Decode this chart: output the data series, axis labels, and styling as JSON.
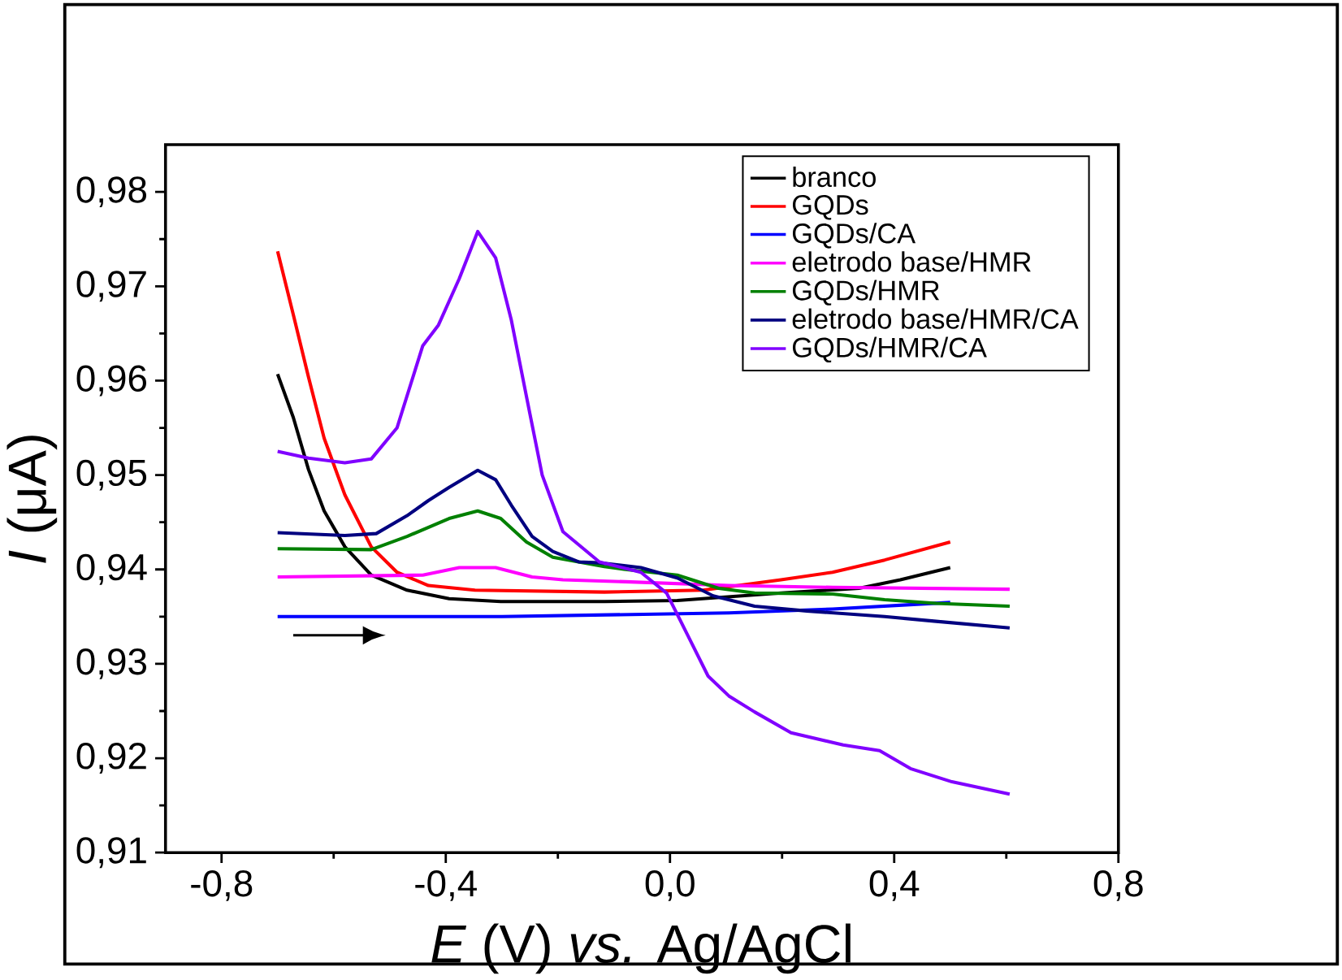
{
  "chart_data": {
    "type": "line",
    "xlabel": "*E* (V) *vs.* Ag/AgCl",
    "ylabel": "*I* (μA)",
    "xlim": [
      -0.9,
      0.8
    ],
    "ylim": [
      0.91,
      0.985
    ],
    "xticks": [
      {
        "value": -0.8,
        "label": "-0,8"
      },
      {
        "value": -0.4,
        "label": "-0,4"
      },
      {
        "value": 0.0,
        "label": "0,0"
      },
      {
        "value": 0.4,
        "label": "0,4"
      },
      {
        "value": 0.8,
        "label": "0,8"
      }
    ],
    "yticks": [
      {
        "value": 0.91,
        "label": "0,91"
      },
      {
        "value": 0.92,
        "label": "0,92"
      },
      {
        "value": 0.93,
        "label": "0,93"
      },
      {
        "value": 0.94,
        "label": "0,94"
      },
      {
        "value": 0.95,
        "label": "0,95"
      },
      {
        "value": 0.96,
        "label": "0,96"
      },
      {
        "value": 0.97,
        "label": "0,97"
      },
      {
        "value": 0.98,
        "label": "0,98"
      }
    ],
    "legend": "top right",
    "series": [
      {
        "name": "branco",
        "color": "#000000",
        "x": [
          -0.7,
          -0.672,
          -0.645,
          -0.617,
          -0.58,
          -0.533,
          -0.469,
          -0.394,
          -0.302,
          -0.117,
          0.013,
          0.198,
          0.337,
          0.411,
          0.5
        ],
        "values": [
          0.9607,
          0.9561,
          0.9506,
          0.9462,
          0.9424,
          0.9394,
          0.9378,
          0.9369,
          0.9366,
          0.9366,
          0.9367,
          0.9375,
          0.938,
          0.9389,
          0.9402
        ]
      },
      {
        "name": "GQDs",
        "color": "#ff0000",
        "x": [
          -0.7,
          -0.672,
          -0.645,
          -0.617,
          -0.58,
          -0.533,
          -0.487,
          -0.431,
          -0.348,
          -0.117,
          0.059,
          0.198,
          0.29,
          0.383,
          0.5
        ],
        "values": [
          0.9737,
          0.967,
          0.9604,
          0.9539,
          0.9479,
          0.9424,
          0.9397,
          0.9383,
          0.9378,
          0.9376,
          0.9378,
          0.9389,
          0.9397,
          0.941,
          0.9429
        ]
      },
      {
        "name": "GQDs/CA",
        "color": "#0000ff",
        "x": [
          -0.7,
          -0.3,
          0.105,
          0.29,
          0.5
        ],
        "values": [
          0.935,
          0.935,
          0.9354,
          0.9358,
          0.9365
        ]
      },
      {
        "name": "eletrodo base/HMR",
        "color": "#ff00ff",
        "x": [
          -0.7,
          -0.441,
          -0.376,
          -0.311,
          -0.246,
          -0.191,
          -0.08,
          0.105,
          0.29,
          0.606
        ],
        "values": [
          0.9392,
          0.9394,
          0.9402,
          0.9402,
          0.9392,
          0.9389,
          0.9387,
          0.9383,
          0.9381,
          0.9379
        ]
      },
      {
        "name": "GQDs/HMR",
        "color": "#008000",
        "x": [
          -0.7,
          -0.533,
          -0.469,
          -0.394,
          -0.343,
          -0.302,
          -0.256,
          -0.209,
          -0.117,
          -0.08,
          0.013,
          0.087,
          0.151,
          0.29,
          0.383,
          0.475,
          0.606
        ],
        "values": [
          0.9422,
          0.9421,
          0.9435,
          0.9454,
          0.9462,
          0.9454,
          0.9429,
          0.9413,
          0.9403,
          0.94,
          0.9394,
          0.938,
          0.9375,
          0.9374,
          0.9368,
          0.9364,
          0.9361
        ]
      },
      {
        "name": "eletrodo base/HMR/CA",
        "color": "#000080",
        "x": [
          -0.7,
          -0.58,
          -0.524,
          -0.469,
          -0.431,
          -0.394,
          -0.343,
          -0.311,
          -0.283,
          -0.246,
          -0.209,
          -0.163,
          -0.126,
          -0.052,
          0.013,
          0.077,
          0.151,
          0.244,
          0.383,
          0.475,
          0.606
        ],
        "values": [
          0.9439,
          0.9436,
          0.9438,
          0.9457,
          0.9473,
          0.9487,
          0.9505,
          0.9495,
          0.9468,
          0.9435,
          0.9419,
          0.9408,
          0.9407,
          0.9402,
          0.9391,
          0.9372,
          0.9361,
          0.9356,
          0.935,
          0.9345,
          0.9338
        ]
      },
      {
        "name": "GQDs/HMR/CA",
        "color": "#8000ff",
        "x": [
          -0.7,
          -0.645,
          -0.58,
          -0.533,
          -0.487,
          -0.441,
          -0.413,
          -0.376,
          -0.343,
          -0.311,
          -0.283,
          -0.256,
          -0.228,
          -0.191,
          -0.126,
          -0.052,
          -0.006,
          0.031,
          0.068,
          0.105,
          0.151,
          0.216,
          0.309,
          0.374,
          0.429,
          0.503,
          0.606
        ],
        "values": [
          0.9525,
          0.9518,
          0.9513,
          0.9517,
          0.955,
          0.9637,
          0.9659,
          0.9708,
          0.9758,
          0.973,
          0.9664,
          0.9583,
          0.95,
          0.944,
          0.9408,
          0.9397,
          0.9375,
          0.9331,
          0.9287,
          0.9266,
          0.9249,
          0.9227,
          0.9214,
          0.9208,
          0.9189,
          0.9175,
          0.9162
        ]
      }
    ]
  }
}
